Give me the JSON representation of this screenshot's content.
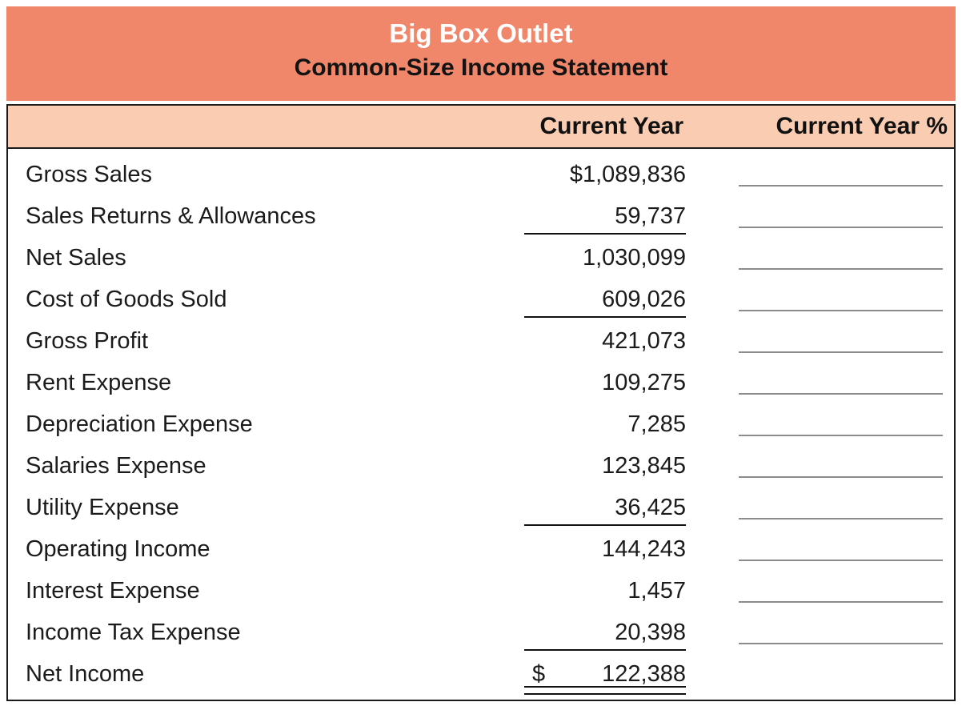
{
  "header": {
    "title": "Big Box Outlet",
    "subtitle": "Common-Size Income Statement"
  },
  "columns": {
    "amount": "Current Year",
    "percent": "Current Year %"
  },
  "rows": [
    {
      "label": "Gross Sales",
      "amount": "$1,089,836"
    },
    {
      "label": "Sales Returns & Allowances",
      "amount": "59,737"
    },
    {
      "label": "Net Sales",
      "amount": "1,030,099"
    },
    {
      "label": "Cost of Goods Sold",
      "amount": "609,026"
    },
    {
      "label": "Gross Profit",
      "amount": "421,073"
    },
    {
      "label": "Rent Expense",
      "amount": "109,275"
    },
    {
      "label": "Depreciation Expense",
      "amount": "7,285"
    },
    {
      "label": "Salaries Expense",
      "amount": "123,845"
    },
    {
      "label": "Utility Expense",
      "amount": "36,425"
    },
    {
      "label": "Operating Income",
      "amount": "144,243"
    },
    {
      "label": "Interest Expense",
      "amount": "1,457"
    },
    {
      "label": "Income Tax Expense",
      "amount": "20,398"
    },
    {
      "label": "Net Income",
      "currency": "$",
      "amount": "122,388"
    }
  ],
  "colors": {
    "banner_bg": "#F0876B",
    "colheader_bg": "#FACDB2",
    "table_border": "#1a1a1a",
    "percent_blank_line": "#8c8c8c"
  }
}
